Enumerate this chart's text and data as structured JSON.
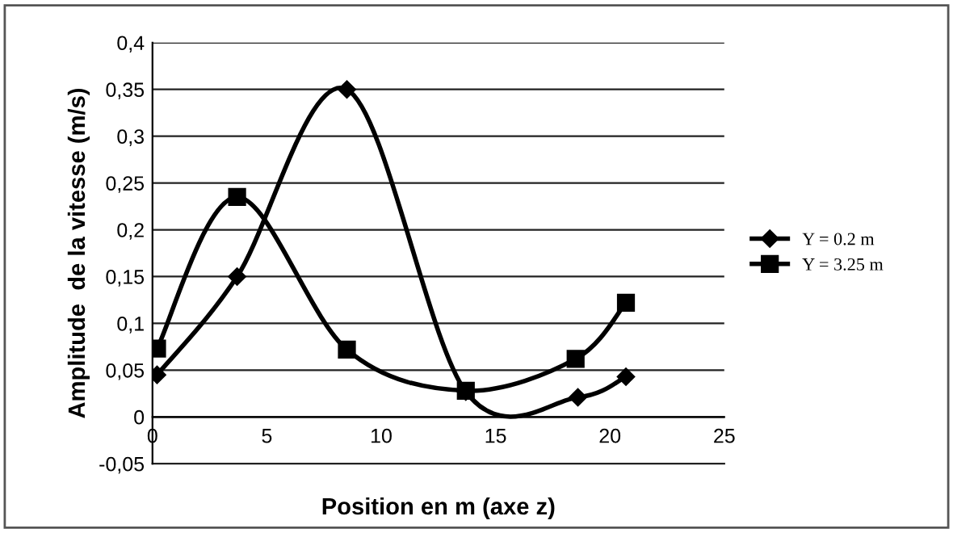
{
  "chart_data": {
    "type": "line",
    "xlabel": "Position en m (axe z)",
    "ylabel": "Amplitude  de la vitesse (m/s)",
    "series": [
      {
        "name": "Y = 0.2 m",
        "color": "#000000",
        "marker": "diamond",
        "x": [
          0.2,
          3.7,
          8.5,
          13.7,
          18.6,
          20.7
        ],
        "values": [
          0.045,
          0.15,
          0.35,
          0.027,
          0.021,
          0.043
        ]
      },
      {
        "name": "Y = 3.25 m",
        "color": "#000000",
        "marker": "square",
        "x": [
          0.2,
          3.7,
          8.5,
          13.7,
          18.5,
          20.7
        ],
        "values": [
          0.073,
          0.235,
          0.072,
          0.028,
          0.062,
          0.122
        ]
      }
    ],
    "xlim": [
      0,
      25
    ],
    "xticks": [
      0,
      5,
      10,
      15,
      20,
      25
    ],
    "ylim": [
      -0.05,
      0.4
    ],
    "yticks": [
      {
        "value": -0.05,
        "label": "-0,05"
      },
      {
        "value": 0,
        "label": "0"
      },
      {
        "value": 0.05,
        "label": "0,05"
      },
      {
        "value": 0.1,
        "label": "0,1"
      },
      {
        "value": 0.15,
        "label": "0,15"
      },
      {
        "value": 0.2,
        "label": "0,2"
      },
      {
        "value": 0.25,
        "label": "0,25"
      },
      {
        "value": 0.3,
        "label": "0,3"
      },
      {
        "value": 0.35,
        "label": "0,35"
      },
      {
        "value": 0.4,
        "label": "0,4"
      }
    ],
    "grid": "y",
    "legend": "right",
    "line_style": "solid"
  }
}
